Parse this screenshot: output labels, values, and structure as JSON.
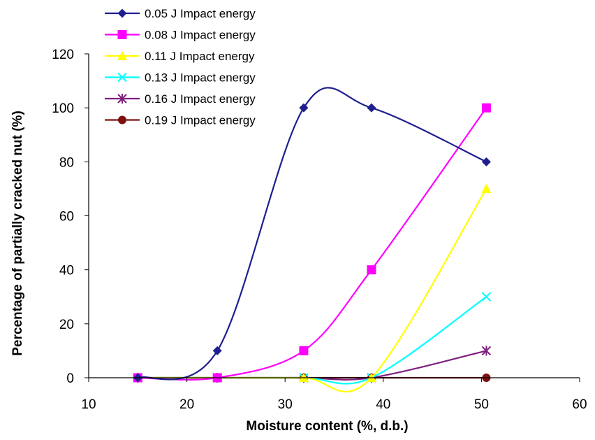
{
  "chart_data": {
    "type": "line",
    "title": "",
    "xlabel": "Moisture content (%, d.b.)",
    "ylabel": "Percentage of partially cracked nut (%)",
    "xlim": [
      10,
      60
    ],
    "ylim": [
      0,
      120
    ],
    "xticks": [
      10,
      20,
      30,
      40,
      50,
      60
    ],
    "yticks": [
      0,
      20,
      40,
      60,
      80,
      100,
      120
    ],
    "grid": false,
    "legend_position": "top-left",
    "series": [
      {
        "name": "0.05 J Impact energy",
        "color": "#1f1f8f",
        "marker": "diamond",
        "smooth": true,
        "x": [
          15,
          23.1,
          31.9,
          38.8,
          50.5
        ],
        "y": [
          0,
          10,
          100,
          100,
          80
        ]
      },
      {
        "name": "0.08 J Impact energy",
        "color": "#ff00ff",
        "marker": "square",
        "smooth": true,
        "x": [
          15,
          23.1,
          31.9,
          38.8,
          50.5
        ],
        "y": [
          0,
          0,
          10,
          40,
          100
        ]
      },
      {
        "name": "0.11 J Impact energy",
        "color": "#ffff00",
        "marker": "triangle",
        "smooth": true,
        "x": [
          15,
          23.1,
          31.9,
          38.8,
          50.5
        ],
        "y": [
          0,
          0,
          0,
          0,
          70
        ]
      },
      {
        "name": "0.13  J Impact energy",
        "color": "#00ffff",
        "marker": "x",
        "smooth": true,
        "x": [
          15,
          23.1,
          31.9,
          38.8,
          50.5
        ],
        "y": [
          0,
          0,
          0,
          0,
          30
        ]
      },
      {
        "name": "0.16  J Impact energy",
        "color": "#7f1f7f",
        "marker": "star",
        "smooth": true,
        "x": [
          15,
          23.1,
          31.9,
          38.8,
          50.5
        ],
        "y": [
          0,
          0,
          0,
          0,
          10
        ]
      },
      {
        "name": "0.19  J Impact energy",
        "color": "#7f1010",
        "marker": "circle",
        "smooth": true,
        "x": [
          15,
          23.1,
          31.9,
          38.8,
          50.5
        ],
        "y": [
          0,
          0,
          0,
          0,
          0
        ]
      }
    ]
  }
}
